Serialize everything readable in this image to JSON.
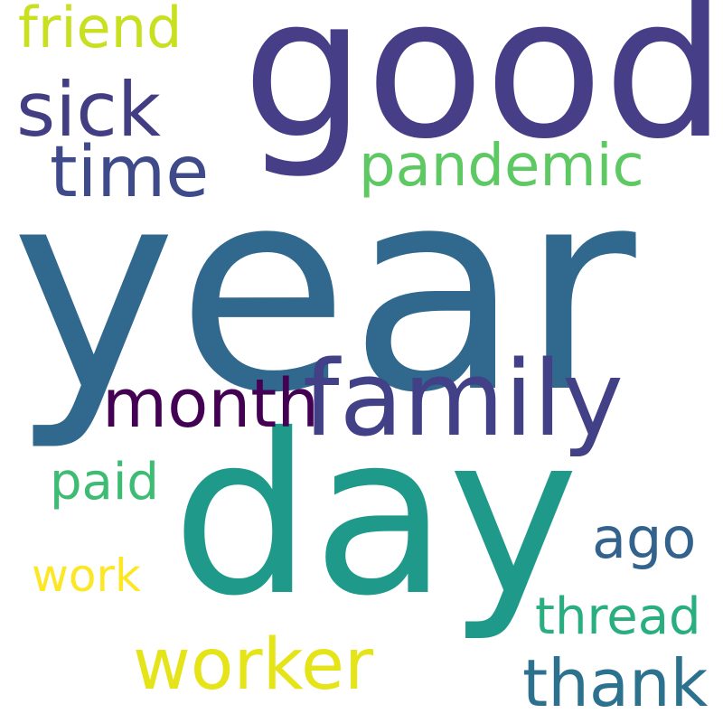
{
  "cloud": {
    "words": [
      {
        "text": "year",
        "color": "#31688e"
      },
      {
        "text": "good",
        "color": "#463e87"
      },
      {
        "text": "day",
        "color": "#1f9a8a"
      },
      {
        "text": "family",
        "color": "#424086"
      },
      {
        "text": "month",
        "color": "#440154"
      },
      {
        "text": "sick",
        "color": "#433d84"
      },
      {
        "text": "time",
        "color": "#3e4a89"
      },
      {
        "text": "pandemic",
        "color": "#5ec962"
      },
      {
        "text": "friend",
        "color": "#c8e020"
      },
      {
        "text": "worker",
        "color": "#e5e419"
      },
      {
        "text": "thank",
        "color": "#2c728e"
      },
      {
        "text": "thread",
        "color": "#29af7f"
      },
      {
        "text": "ago",
        "color": "#33638d"
      },
      {
        "text": "paid",
        "color": "#3fbc73"
      },
      {
        "text": "work",
        "color": "#fde725"
      }
    ]
  }
}
